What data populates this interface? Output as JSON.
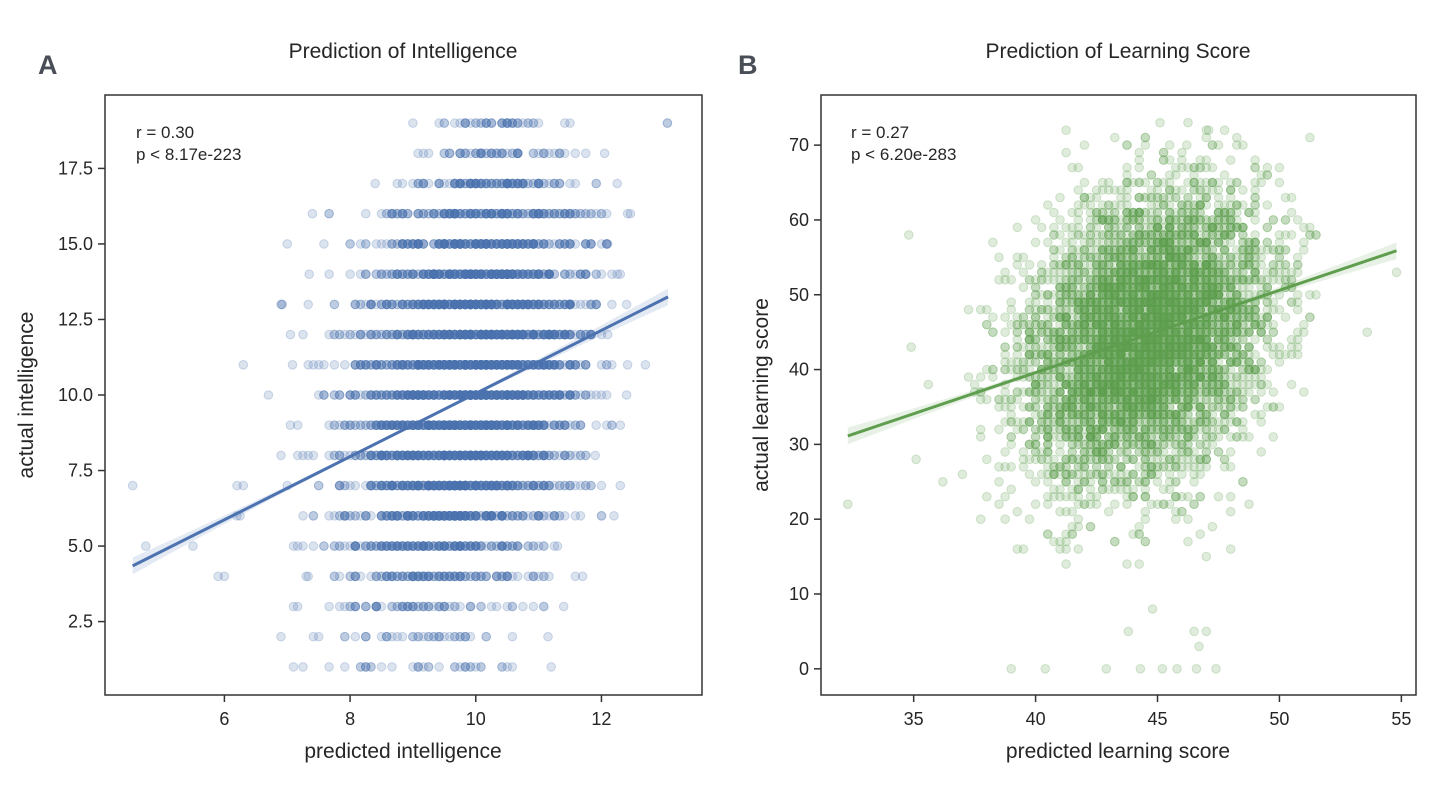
{
  "chart_data": [
    {
      "type": "scatter",
      "panel_label": "A",
      "title": "Prediction of Intelligence",
      "xlabel": "predicted intelligence",
      "ylabel": "actual intelligence",
      "xlim": [
        4.1,
        13.6
      ],
      "ylim": [
        0.07,
        19.93
      ],
      "xticks": [
        6,
        8,
        10,
        12
      ],
      "xtick_labels": [
        "6",
        "8",
        "10",
        "12"
      ],
      "yticks": [
        2.5,
        5.0,
        7.5,
        10.0,
        12.5,
        15.0,
        17.5
      ],
      "ytick_labels": [
        "2.5",
        "5.0",
        "7.5",
        "10.0",
        "12.5",
        "15.0",
        "17.5"
      ],
      "annotation": [
        "r = 0.30",
        "p < 8.17e-223"
      ],
      "color": "#4c72b0",
      "grid": false,
      "regression": {
        "slope": 1.045,
        "intercept": -0.4,
        "x_range": [
          4.54,
          13.06
        ]
      },
      "rows": [
        {
          "y": 19,
          "x_min": 9.0,
          "x_max": 13.05,
          "x_center": 10.3,
          "x_sd": 0.55,
          "n": 45
        },
        {
          "y": 18,
          "x_min": 9.08,
          "x_max": 12.05,
          "x_center": 10.4,
          "x_sd": 0.6,
          "n": 60
        },
        {
          "y": 17,
          "x_min": 8.4,
          "x_max": 12.25,
          "x_center": 10.3,
          "x_sd": 0.75,
          "n": 130
        },
        {
          "y": 16,
          "x_min": 7.4,
          "x_max": 12.46,
          "x_center": 10.2,
          "x_sd": 0.8,
          "n": 200
        },
        {
          "y": 15,
          "x_min": 7.0,
          "x_max": 12.1,
          "x_center": 10.1,
          "x_sd": 0.85,
          "n": 260
        },
        {
          "y": 14,
          "x_min": 7.35,
          "x_max": 12.3,
          "x_center": 10.1,
          "x_sd": 0.85,
          "n": 320
        },
        {
          "y": 13,
          "x_min": 6.9,
          "x_max": 12.4,
          "x_center": 10.0,
          "x_sd": 0.9,
          "n": 380
        },
        {
          "y": 12,
          "x_min": 7.05,
          "x_max": 12.1,
          "x_center": 10.0,
          "x_sd": 0.9,
          "n": 420
        },
        {
          "y": 11,
          "x_min": 6.3,
          "x_max": 12.7,
          "x_center": 9.9,
          "x_sd": 0.9,
          "n": 450
        },
        {
          "y": 10,
          "x_min": 6.7,
          "x_max": 12.4,
          "x_center": 9.9,
          "x_sd": 0.9,
          "n": 450
        },
        {
          "y": 9,
          "x_min": 7.05,
          "x_max": 12.3,
          "x_center": 9.8,
          "x_sd": 0.9,
          "n": 420
        },
        {
          "y": 8,
          "x_min": 6.9,
          "x_max": 11.9,
          "x_center": 9.7,
          "x_sd": 0.9,
          "n": 380
        },
        {
          "y": 7,
          "x_min": 6.2,
          "x_max": 12.3,
          "x_center": 9.6,
          "x_sd": 0.9,
          "n": 330
        },
        {
          "y": 6,
          "x_min": 6.2,
          "x_max": 12.2,
          "x_center": 9.6,
          "x_sd": 0.9,
          "n": 260
        },
        {
          "y": 5,
          "x_min": 7.1,
          "x_max": 11.3,
          "x_center": 9.4,
          "x_sd": 0.85,
          "n": 190
        },
        {
          "y": 4,
          "x_min": 7.3,
          "x_max": 11.7,
          "x_center": 9.3,
          "x_sd": 0.85,
          "n": 130
        },
        {
          "y": 3,
          "x_min": 7.1,
          "x_max": 11.4,
          "x_center": 9.2,
          "x_sd": 0.85,
          "n": 70
        },
        {
          "y": 2,
          "x_min": 6.9,
          "x_max": 11.15,
          "x_center": 9.2,
          "x_sd": 0.85,
          "n": 40
        },
        {
          "y": 1,
          "x_min": 7.1,
          "x_max": 11.2,
          "x_center": 9.3,
          "x_sd": 0.85,
          "n": 35
        }
      ],
      "outliers": [
        [
          4.54,
          7
        ],
        [
          4.75,
          5
        ],
        [
          5.5,
          5
        ],
        [
          5.9,
          4
        ],
        [
          6.0,
          4
        ],
        [
          6.3,
          7
        ],
        [
          6.25,
          6
        ],
        [
          13.05,
          19
        ]
      ]
    },
    {
      "type": "scatter",
      "panel_label": "B",
      "title": "Prediction of Learning Score",
      "xlabel": "predicted learning score",
      "ylabel": "actual learning score",
      "xlim": [
        31.2,
        55.6
      ],
      "ylim": [
        -3.5,
        76.7
      ],
      "xticks": [
        35,
        40,
        45,
        50,
        55
      ],
      "xtick_labels": [
        "35",
        "40",
        "45",
        "50",
        "55"
      ],
      "yticks": [
        0,
        10,
        20,
        30,
        40,
        50,
        60,
        70
      ],
      "ytick_labels": [
        "0",
        "10",
        "20",
        "30",
        "40",
        "50",
        "60",
        "70"
      ],
      "annotation": [
        "r = 0.27",
        "p < 6.20e-283"
      ],
      "color": "#5f9e4f",
      "grid": false,
      "regression": {
        "slope": 1.1,
        "intercept": -4.4,
        "x_range": [
          32.3,
          54.8
        ]
      },
      "cloud": {
        "x_mean": 44.6,
        "x_sd": 2.4,
        "y_mean": 44.5,
        "y_sd": 9.5,
        "n": 6000,
        "x_range": [
          37,
          51.5
        ],
        "y_range": [
          1,
          73
        ]
      },
      "outliers": [
        [
          32.3,
          22
        ],
        [
          34.8,
          58
        ],
        [
          35.1,
          28
        ],
        [
          34.9,
          43
        ],
        [
          35.6,
          38
        ],
        [
          36.2,
          25
        ],
        [
          53.6,
          45
        ],
        [
          54.8,
          53
        ],
        [
          39.0,
          0
        ],
        [
          40.4,
          0
        ],
        [
          42.9,
          0
        ],
        [
          44.3,
          0
        ],
        [
          45.2,
          0
        ],
        [
          45.8,
          0
        ],
        [
          46.6,
          0
        ],
        [
          47.4,
          0
        ],
        [
          45.1,
          73
        ],
        [
          47.1,
          72
        ],
        [
          46.2,
          70
        ],
        [
          46.5,
          5
        ],
        [
          47.0,
          5
        ],
        [
          46.7,
          3
        ],
        [
          44.8,
          8
        ],
        [
          43.8,
          5
        ]
      ]
    }
  ]
}
